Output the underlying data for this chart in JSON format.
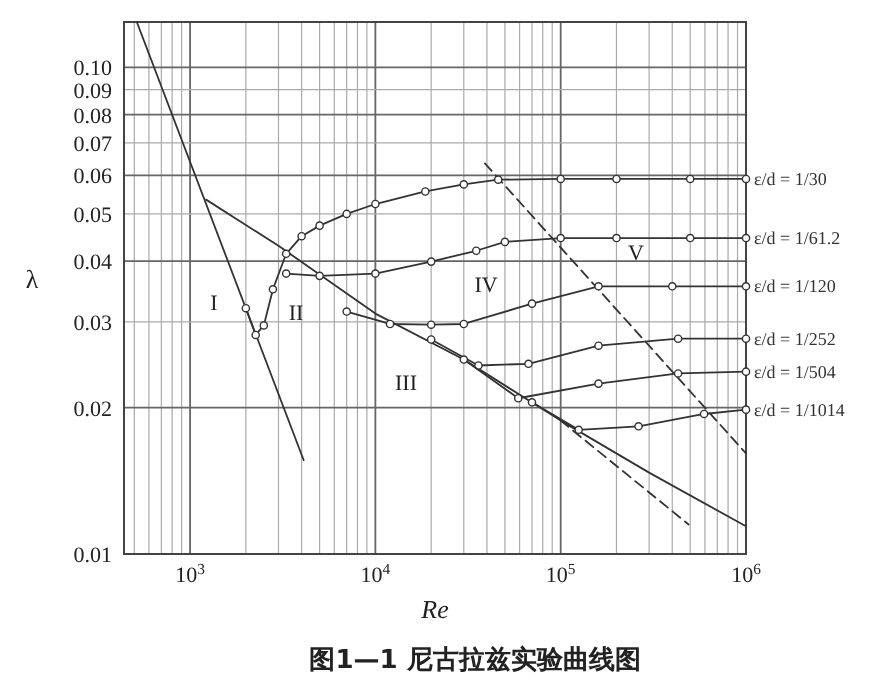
{
  "chart_data": {
    "type": "line",
    "title": "图1—1 尼古拉兹实验曲线图",
    "xlabel": "*Re*",
    "ylabel": "λ",
    "log": "xy",
    "grid": true,
    "xlim": [
      440,
      1000000
    ],
    "ylim": [
      0.01,
      0.124
    ],
    "xticks": [
      {
        "value": 1000,
        "label": "10$^{3}$"
      },
      {
        "value": 10000,
        "label": "10$^{4}$"
      },
      {
        "value": 100000,
        "label": "10$^{5}$"
      },
      {
        "value": 1000000,
        "label": "10$^{6}$"
      }
    ],
    "yticks": [
      0.01,
      0.02,
      0.03,
      0.04,
      0.05,
      0.06,
      0.07,
      0.08,
      0.09,
      {
        "value": 0.1,
        "label": "0.10"
      }
    ],
    "series": [
      {
        "color": "#333333",
        "marker": "none",
        "line_style": "solid",
        "x": [
          516,
          4100
        ],
        "values": [
          0.124,
          0.0156
        ]
      },
      {
        "color": "#333333",
        "marker": "none",
        "line_style": "solid",
        "x": [
          1220,
          3000,
          10000,
          30000,
          100000,
          300000,
          1000000
        ],
        "values": [
          0.0535,
          0.043,
          0.0312,
          0.0251,
          0.0188,
          0.0147,
          0.0114
        ]
      },
      {
        "color": "#333333",
        "marker": "none",
        "line_style": "dashed",
        "x": [
          39000,
          1000000
        ],
        "values": [
          0.0635,
          0.0161
        ]
      },
      {
        "color": "#333333",
        "marker": "none",
        "line_style": "dashed",
        "x": [
          100000,
          490000
        ],
        "values": [
          0.0188,
          0.0115
        ]
      },
      {
        "name": "ε/d = 1/30",
        "color": "#333333",
        "marker": "circle",
        "line_style": "solid",
        "x": [
          2000,
          2260,
          2500,
          2800,
          3300,
          4000,
          5000,
          7000,
          10000,
          18600,
          30000,
          46000,
          100000,
          200000,
          500000,
          1000000
        ],
        "values": [
          0.032,
          0.0282,
          0.0295,
          0.035,
          0.0414,
          0.045,
          0.0473,
          0.05,
          0.0524,
          0.0556,
          0.0575,
          0.0588,
          0.059,
          0.059,
          0.059,
          0.059
        ]
      },
      {
        "name": "ε/d = 1/61.2",
        "color": "#333333",
        "marker": "circle",
        "line_style": "solid",
        "x": [
          3300,
          5000,
          10000,
          20000,
          35000,
          50000,
          100000,
          200000,
          500000,
          1000000
        ],
        "values": [
          0.0377,
          0.0373,
          0.0377,
          0.0399,
          0.042,
          0.0438,
          0.0446,
          0.0446,
          0.0446,
          0.0446
        ]
      },
      {
        "name": "ε/d = 1/120",
        "color": "#333333",
        "marker": "circle",
        "line_style": "solid",
        "x": [
          7000,
          12000,
          20000,
          30000,
          70000,
          160000,
          400000,
          1000000
        ],
        "values": [
          0.0315,
          0.0297,
          0.0296,
          0.0297,
          0.0327,
          0.0355,
          0.0355,
          0.0355
        ]
      },
      {
        "name": "ε/d = 1/252",
        "color": "#333333",
        "marker": "circle",
        "line_style": "solid",
        "x": [
          20000,
          36000,
          67000,
          160000,
          430000,
          1000000
        ],
        "values": [
          0.0276,
          0.0244,
          0.0246,
          0.0268,
          0.0277,
          0.0277
        ]
      },
      {
        "name": "ε/d = 1/504",
        "color": "#333333",
        "marker": "circle",
        "line_style": "solid",
        "x": [
          30000,
          59000,
          160000,
          430000,
          1000000
        ],
        "values": [
          0.0251,
          0.0209,
          0.0224,
          0.0235,
          0.0237
        ]
      },
      {
        "name": "ε/d = 1/1014",
        "color": "#333333",
        "marker": "circle",
        "line_style": "solid",
        "x": [
          70000,
          125000,
          263000,
          594000,
          1000000
        ],
        "values": [
          0.0205,
          0.018,
          0.0183,
          0.0194,
          0.0198
        ]
      }
    ],
    "annotations": [
      "I",
      "II",
      "III",
      "IV",
      "V"
    ]
  }
}
